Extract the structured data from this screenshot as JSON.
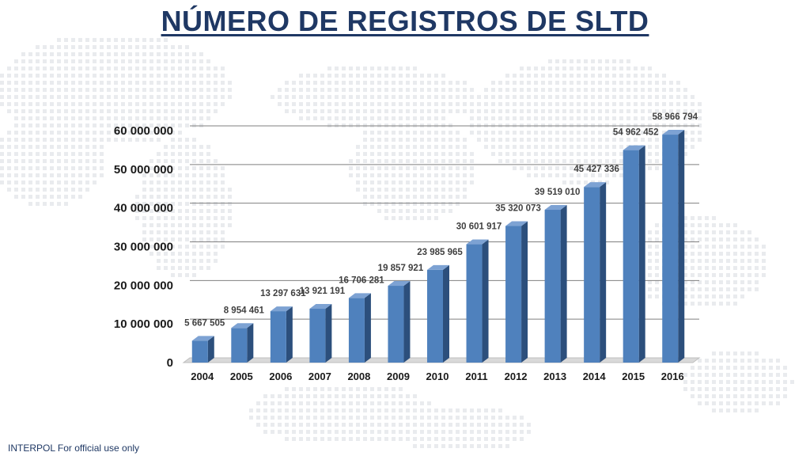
{
  "title": "NÚMERO DE REGISTROS DE SLTD",
  "footer": "INTERPOL For official use only",
  "colors": {
    "bar_front": "#4f81bd",
    "bar_side": "#2c4f7c",
    "bar_top": "#7da2d3",
    "title": "#1f3864",
    "gridline": "#7f7f7f"
  },
  "chart_data": {
    "type": "bar",
    "title": "NÚMERO DE REGISTROS DE SLTD",
    "xlabel": "",
    "ylabel": "",
    "categories": [
      "2004",
      "2005",
      "2006",
      "2007",
      "2008",
      "2009",
      "2010",
      "2011",
      "2012",
      "2013",
      "2014",
      "2015",
      "2016"
    ],
    "values": [
      5667505,
      8954461,
      13297631,
      13921191,
      16706281,
      19857921,
      23985965,
      30601917,
      35320073,
      39519010,
      45427336,
      54962452,
      58966794
    ],
    "data_labels": [
      "5 667 505",
      "8 954 461",
      "13 297 631",
      "13 921 191",
      "16 706 281",
      "19 857 921",
      "23 985 965",
      "30 601 917",
      "35 320 073",
      "39 519 010",
      "45 427 336",
      "54 962 452",
      "58 966 794"
    ],
    "ylim": [
      0,
      60000000
    ],
    "yticks": [
      0,
      10000000,
      20000000,
      30000000,
      40000000,
      50000000,
      60000000
    ],
    "ytick_labels": [
      "0",
      "10 000 000",
      "20 000 000",
      "30 000 000",
      "40 000 000",
      "50 000 000",
      "60 000 000"
    ],
    "grid": true,
    "legend": "none",
    "style": "3d-column"
  }
}
